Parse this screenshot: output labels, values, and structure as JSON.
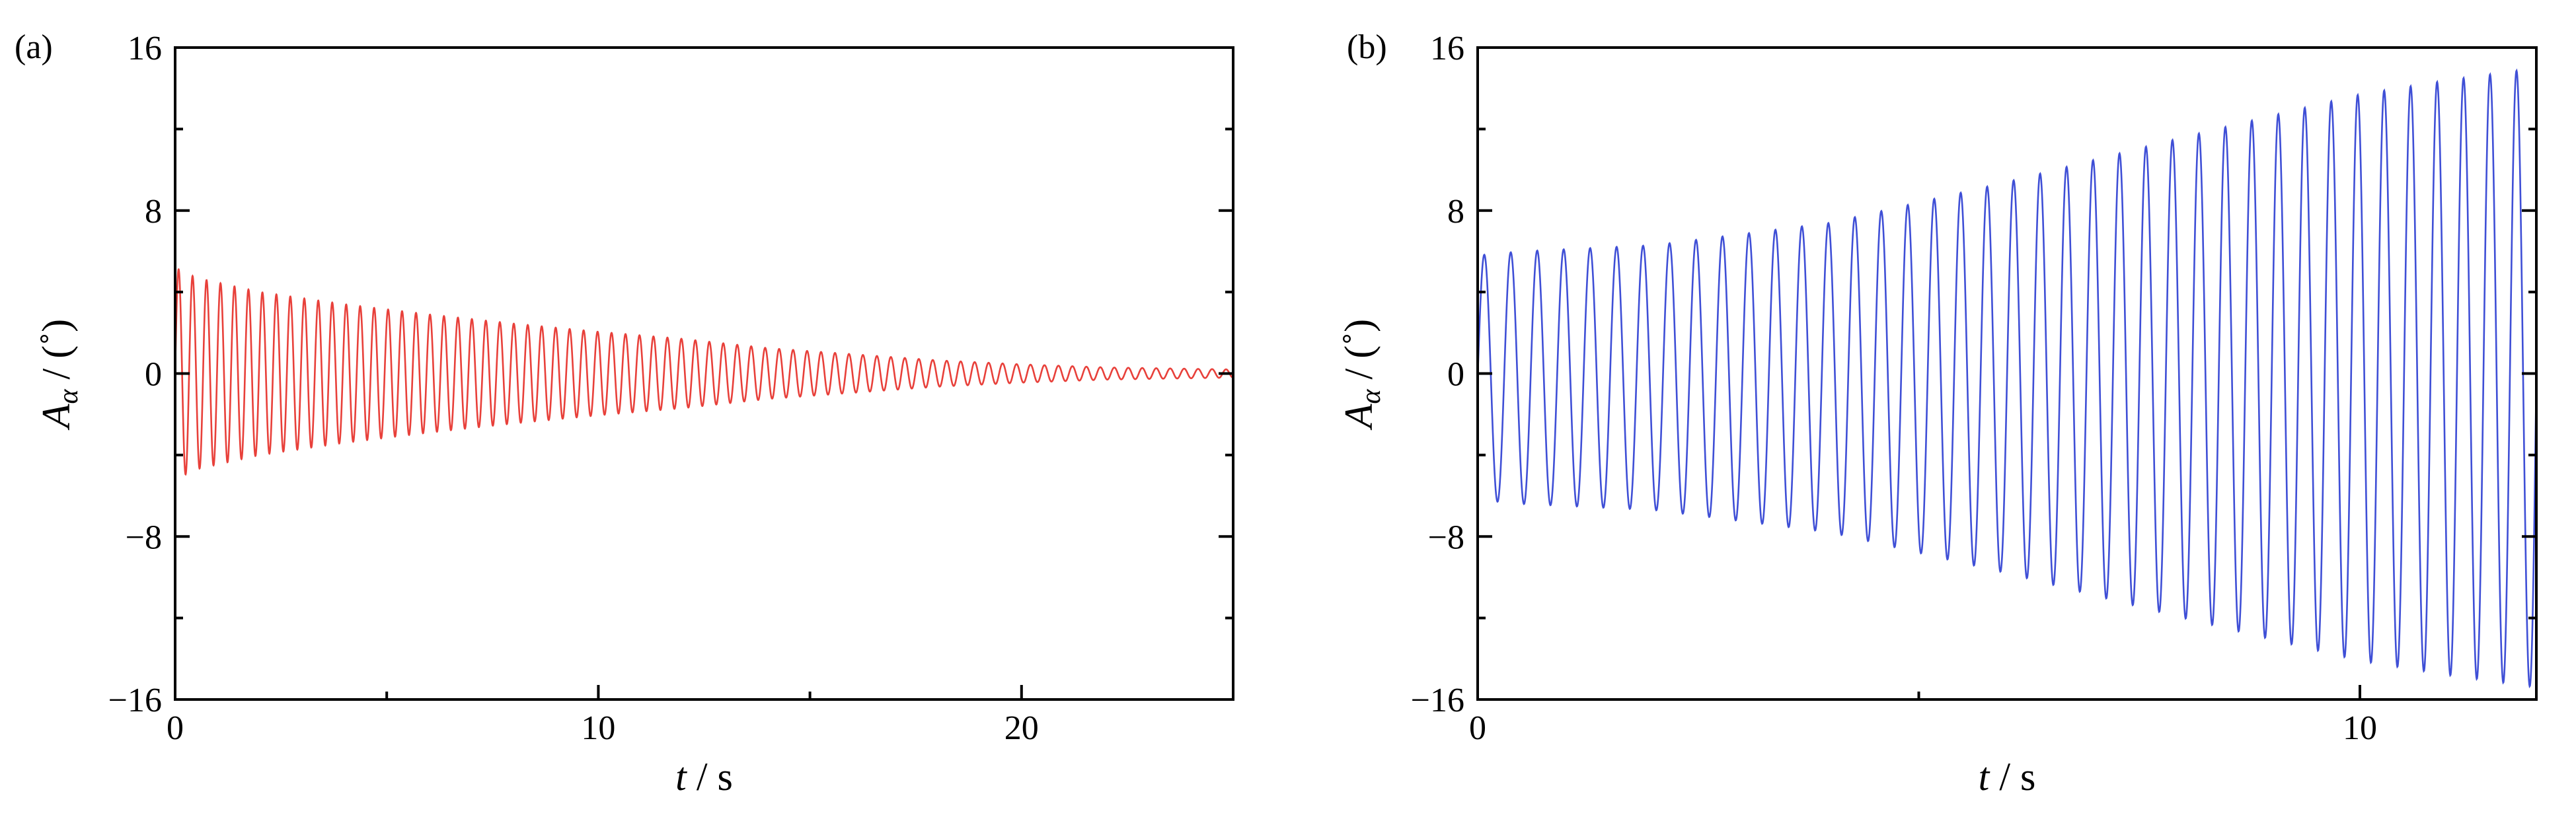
{
  "chart_data": [
    {
      "type": "line",
      "panel_label": "(a)",
      "xlabel_var": "t",
      "xlabel_unit": " / s",
      "ylabel_var": "A",
      "ylabel_sub": "α",
      "ylabel_unit": " / (˚)",
      "xlim": [
        0,
        25
      ],
      "ylim": [
        -16,
        16
      ],
      "x_ticks": [
        0,
        10,
        20
      ],
      "x_tick_labels": [
        "0",
        "10",
        "20"
      ],
      "y_ticks": [
        -16,
        -8,
        0,
        8,
        16
      ],
      "y_tick_labels": [
        "−16",
        "−8",
        "0",
        "8",
        "16"
      ],
      "color": "#e8403a",
      "series": [
        {
          "envelope_t": [
            0,
            0.5,
            2,
            4,
            6,
            8,
            10,
            12,
            14,
            16,
            18,
            20,
            22,
            25
          ],
          "envelope_amp": [
            5.2,
            4.7,
            4.0,
            3.4,
            2.9,
            2.45,
            2.05,
            1.7,
            1.25,
            0.95,
            0.65,
            0.45,
            0.3,
            0.2
          ],
          "period_s": 0.33,
          "offset": 0
        }
      ]
    },
    {
      "type": "line",
      "panel_label": "(b)",
      "xlabel_var": "t",
      "xlabel_unit": " / s",
      "ylabel_var": "A",
      "ylabel_sub": "α",
      "ylabel_unit": " / (˚)",
      "xlim": [
        0,
        12
      ],
      "ylim": [
        -16,
        16
      ],
      "x_ticks": [
        0,
        10
      ],
      "x_tick_labels": [
        "0",
        "10"
      ],
      "y_ticks": [
        -16,
        -8,
        0,
        8,
        16
      ],
      "y_tick_labels": [
        "−16",
        "−8",
        "0",
        "8",
        "16"
      ],
      "color": "#3f4fd6",
      "series": [
        {
          "envelope_t": [
            0,
            0.5,
            2,
            4,
            6,
            8,
            10,
            11,
            12
          ],
          "envelope_amp": [
            6.0,
            6.2,
            6.5,
            7.6,
            9.6,
            11.8,
            13.9,
            14.6,
            15.2
          ],
          "period_s": 0.3,
          "offset": -0.2
        }
      ]
    }
  ]
}
